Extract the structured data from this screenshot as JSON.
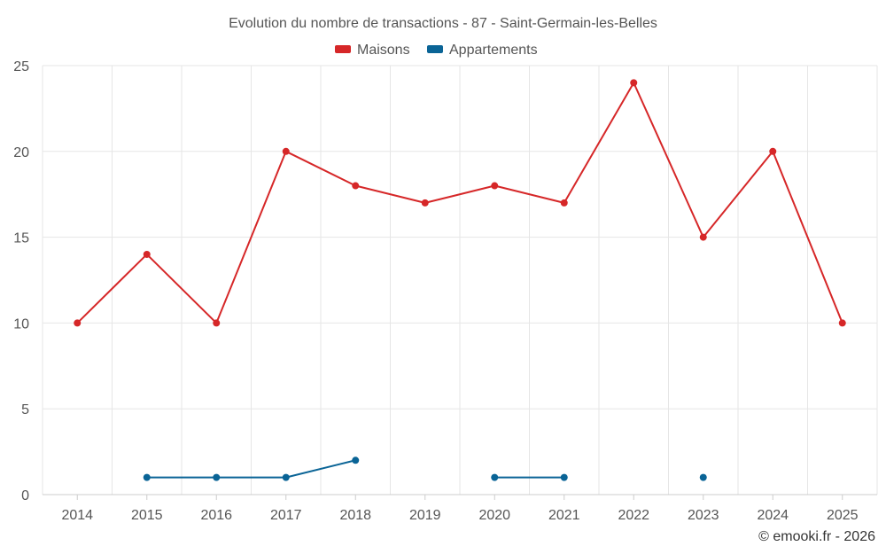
{
  "chart_data": {
    "type": "line",
    "title": "Evolution du nombre de transactions - 87 - Saint-Germain-les-Belles",
    "categories": [
      "2014",
      "2015",
      "2016",
      "2017",
      "2018",
      "2019",
      "2020",
      "2021",
      "2022",
      "2023",
      "2024",
      "2025"
    ],
    "ylim": [
      0,
      25
    ],
    "yticks": [
      "0",
      "5",
      "10",
      "15",
      "20",
      "25"
    ],
    "grid": true,
    "legend": "top-center",
    "series": [
      {
        "name": "Maisons",
        "color": "#d62728",
        "values": [
          10,
          14,
          10,
          20,
          18,
          17,
          18,
          17,
          24,
          15,
          20,
          10
        ]
      },
      {
        "name": "Appartements",
        "color": "#0a6496",
        "values": [
          null,
          1,
          1,
          1,
          2,
          null,
          1,
          1,
          null,
          1,
          null,
          null
        ]
      }
    ]
  },
  "credit": "© emooki.fr - 2026"
}
